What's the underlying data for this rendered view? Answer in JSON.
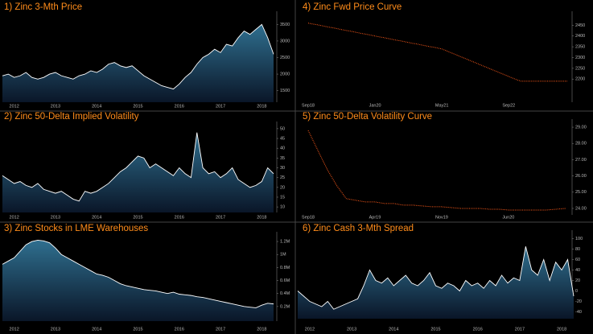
{
  "chart_data": [
    {
      "type": "area",
      "title": "1) Zinc 3-Mth Price",
      "color": "#ffffff",
      "categories": [
        null,
        null,
        "2012",
        null,
        null,
        null,
        null,
        null,
        null,
        "2013",
        null,
        null,
        null,
        null,
        null,
        null,
        "2014",
        null,
        null,
        null,
        null,
        null,
        null,
        "2015",
        null,
        null,
        null,
        null,
        null,
        null,
        "2016",
        null,
        null,
        null,
        null,
        null,
        null,
        "2017",
        null,
        null,
        null,
        null,
        null,
        null,
        "2018",
        null,
        null
      ],
      "values": [
        1950,
        2000,
        1900,
        1950,
        2050,
        1900,
        1850,
        1900,
        2000,
        2050,
        1950,
        1900,
        1850,
        1950,
        2000,
        2100,
        2050,
        2150,
        2300,
        2350,
        2250,
        2200,
        2250,
        2100,
        1950,
        1850,
        1750,
        1650,
        1600,
        1550,
        1700,
        1900,
        2050,
        2300,
        2500,
        2600,
        2750,
        2650,
        2900,
        2850,
        3100,
        3300,
        3200,
        3350,
        3500,
        3100,
        2600
      ],
      "ylim": [
        1200,
        3800
      ],
      "yticks": [
        1500,
        2000,
        2500,
        3000,
        3500
      ]
    },
    {
      "type": "area",
      "title": "2) Zinc 50-Delta Implied Volatility",
      "color": "#ffffff",
      "categories": [
        null,
        null,
        "2012",
        null,
        null,
        null,
        null,
        null,
        null,
        "2013",
        null,
        null,
        null,
        null,
        null,
        null,
        "2014",
        null,
        null,
        null,
        null,
        null,
        null,
        "2015",
        null,
        null,
        null,
        null,
        null,
        null,
        "2016",
        null,
        null,
        null,
        null,
        null,
        null,
        "2017",
        null,
        null,
        null,
        null,
        null,
        null,
        "2018",
        null,
        null
      ],
      "values": [
        26,
        24,
        22,
        23,
        21,
        20,
        22,
        19,
        18,
        17,
        18,
        16,
        14,
        13,
        18,
        17,
        18,
        20,
        22,
        25,
        28,
        30,
        33,
        36,
        35,
        30,
        32,
        30,
        28,
        26,
        30,
        27,
        25,
        48,
        30,
        27,
        28,
        25,
        27,
        30,
        24,
        22,
        20,
        21,
        23,
        30,
        27
      ],
      "ylim": [
        8,
        52
      ],
      "yticks": [
        10,
        15,
        20,
        25,
        30,
        35,
        40,
        45,
        50
      ]
    },
    {
      "type": "area",
      "title": "3) Zinc Stocks in LME Warehouses",
      "color": "#ffffff",
      "categories": [
        null,
        null,
        "2012",
        null,
        null,
        null,
        null,
        null,
        null,
        "2013",
        null,
        null,
        null,
        null,
        null,
        null,
        "2014",
        null,
        null,
        null,
        null,
        null,
        null,
        "2015",
        null,
        null,
        null,
        null,
        null,
        null,
        "2016",
        null,
        null,
        null,
        null,
        null,
        null,
        "2017",
        null,
        null,
        null,
        null,
        null,
        null,
        "2018",
        null,
        null
      ],
      "values": [
        850000,
        900000,
        950000,
        1050000,
        1150000,
        1200000,
        1220000,
        1210000,
        1180000,
        1100000,
        1000000,
        950000,
        900000,
        850000,
        800000,
        750000,
        700000,
        680000,
        650000,
        600000,
        550000,
        520000,
        500000,
        480000,
        460000,
        450000,
        440000,
        420000,
        400000,
        420000,
        390000,
        380000,
        370000,
        350000,
        340000,
        320000,
        300000,
        280000,
        260000,
        240000,
        220000,
        200000,
        190000,
        180000,
        220000,
        250000,
        240000
      ],
      "ylim": [
        0,
        1300000
      ],
      "yticks": [
        {
          "value": 200000,
          "label": "0.2M"
        },
        {
          "value": 400000,
          "label": "0.4M"
        },
        {
          "value": 600000,
          "label": "0.6M"
        },
        {
          "value": 800000,
          "label": "0.8M"
        },
        {
          "value": 1000000,
          "label": "1M"
        },
        {
          "value": 1200000,
          "label": "1.2M"
        }
      ]
    },
    {
      "type": "line",
      "title": "4) Zinc Fwd Price Curve",
      "color": "#ff5a1a",
      "categories": [
        "Sep18",
        null,
        null,
        null,
        null,
        null,
        null,
        null,
        null,
        null,
        null,
        null,
        null,
        null,
        null,
        null,
        "Jan20",
        null,
        null,
        null,
        null,
        null,
        null,
        null,
        null,
        null,
        null,
        null,
        null,
        null,
        null,
        null,
        "May21",
        null,
        null,
        null,
        null,
        null,
        null,
        null,
        null,
        null,
        null,
        null,
        null,
        null,
        null,
        null,
        "Sep22",
        null,
        null,
        null,
        null,
        null,
        null,
        null,
        null,
        null,
        null,
        null,
        null,
        null,
        null
      ],
      "values": [
        2460,
        2456,
        2453,
        2449,
        2445,
        2441,
        2438,
        2434,
        2430,
        2426,
        2423,
        2419,
        2415,
        2411,
        2408,
        2404,
        2400,
        2396,
        2393,
        2389,
        2385,
        2381,
        2378,
        2374,
        2370,
        2366,
        2363,
        2359,
        2355,
        2351,
        2348,
        2344,
        2340,
        2332,
        2324,
        2316,
        2308,
        2300,
        2292,
        2284,
        2276,
        2268,
        2260,
        2252,
        2244,
        2236,
        2228,
        2220,
        2212,
        2204,
        2196,
        2190,
        2190,
        2190,
        2190,
        2190,
        2190,
        2190,
        2190,
        2190,
        2190,
        2190,
        2190
      ],
      "ylim": [
        2100,
        2500
      ],
      "yticks": [
        2200,
        2250,
        2300,
        2350,
        2400,
        2450
      ]
    },
    {
      "type": "line",
      "title": "5) Zinc 50-Delta Volatility Curve",
      "color": "#ff5a1a",
      "categories": [
        "Sep18",
        null,
        null,
        null,
        null,
        null,
        null,
        "Apr19",
        null,
        null,
        null,
        null,
        null,
        null,
        "Nov19",
        null,
        null,
        null,
        null,
        null,
        null,
        "Jun20",
        null,
        null,
        null,
        null,
        null,
        null
      ],
      "values": [
        28.8,
        27.6,
        26.4,
        25.4,
        24.6,
        24.5,
        24.4,
        24.4,
        24.3,
        24.3,
        24.2,
        24.2,
        24.15,
        24.1,
        24.1,
        24.05,
        24.0,
        24.0,
        24.0,
        23.95,
        23.95,
        23.9,
        23.9,
        23.9,
        23.9,
        23.9,
        23.95,
        24.0
      ],
      "ylim": [
        23.7,
        29.3
      ],
      "yticks": [
        {
          "value": 24,
          "label": "24.00"
        },
        {
          "value": 25,
          "label": "25.00"
        },
        {
          "value": 26,
          "label": "26.00"
        },
        {
          "value": 27,
          "label": "27.00"
        },
        {
          "value": 28,
          "label": "28.00"
        },
        {
          "value": 29,
          "label": "29.00"
        }
      ]
    },
    {
      "type": "area",
      "title": "6) Zinc Cash 3-Mth Spread",
      "color": "#ffffff",
      "categories": [
        null,
        null,
        "2012",
        null,
        null,
        null,
        null,
        null,
        null,
        "2013",
        null,
        null,
        null,
        null,
        null,
        null,
        "2014",
        null,
        null,
        null,
        null,
        null,
        null,
        "2015",
        null,
        null,
        null,
        null,
        null,
        null,
        "2016",
        null,
        null,
        null,
        null,
        null,
        null,
        "2017",
        null,
        null,
        null,
        null,
        null,
        null,
        "2018",
        null,
        null
      ],
      "values": [
        0,
        -10,
        -20,
        -25,
        -30,
        -20,
        -35,
        -30,
        -25,
        -20,
        -15,
        10,
        40,
        20,
        15,
        25,
        10,
        20,
        30,
        15,
        10,
        20,
        35,
        10,
        5,
        15,
        10,
        0,
        20,
        10,
        15,
        5,
        20,
        10,
        30,
        15,
        25,
        20,
        85,
        40,
        30,
        60,
        20,
        55,
        40,
        60,
        -10
      ],
      "ylim": [
        -50,
        110
      ],
      "yticks": [
        -40,
        -20,
        0,
        20,
        40,
        60,
        80,
        100
      ]
    }
  ]
}
